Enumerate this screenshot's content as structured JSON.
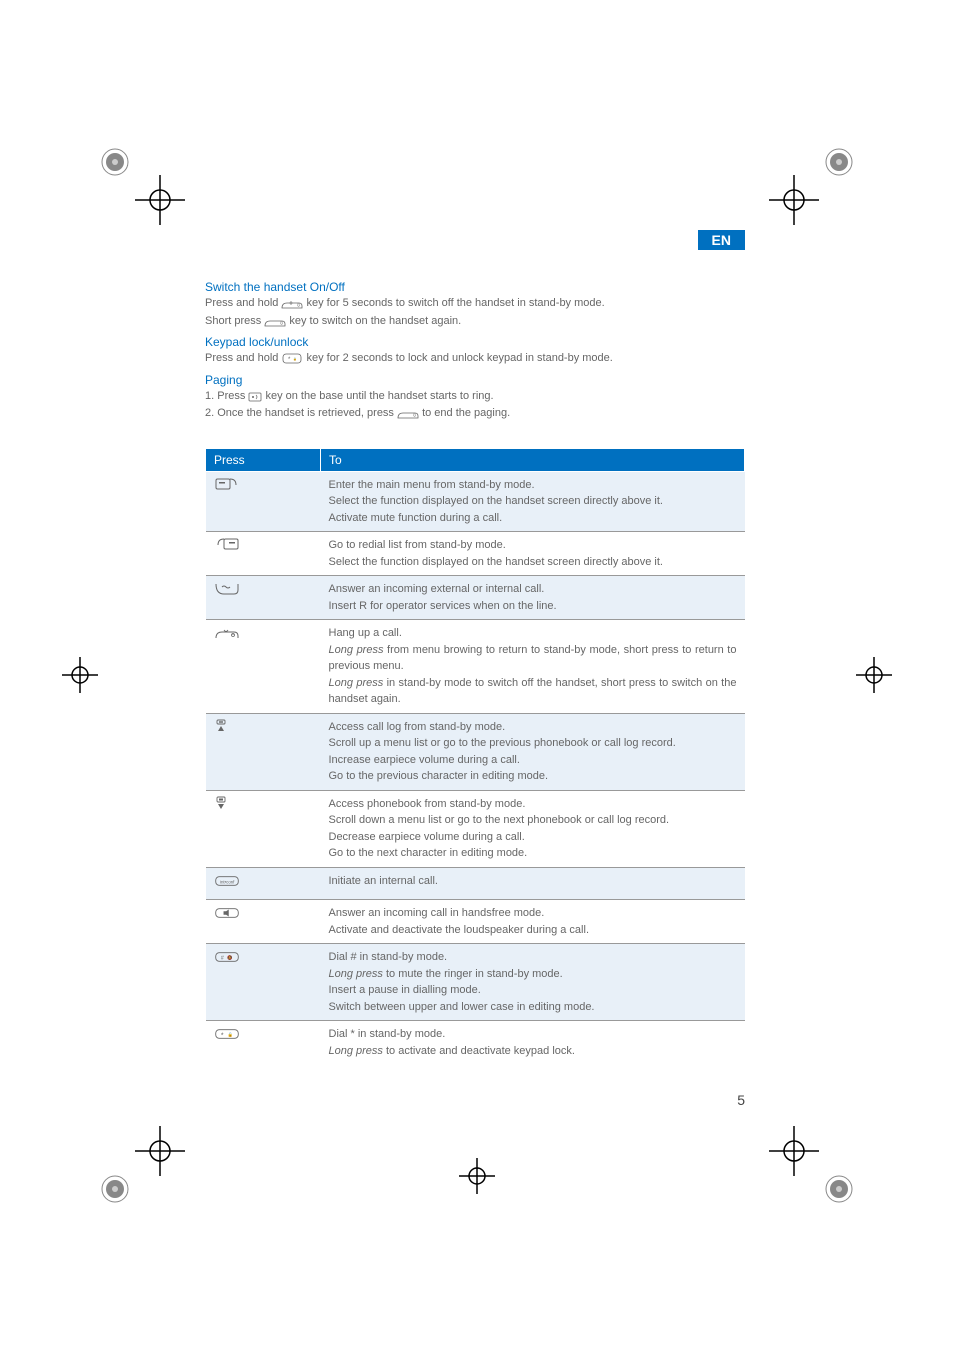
{
  "lang_badge": "EN",
  "page_number": "5",
  "sections": {
    "switch": {
      "title": "Switch the handset On/Off",
      "line1_a": "Press and hold ",
      "line1_b": " key for 5 seconds to switch off the handset in stand-by mode.",
      "line2_a": "Short press ",
      "line2_b": " key to switch on the handset again."
    },
    "keypad": {
      "title": "Keypad lock/unlock",
      "line1_a": "Press and hold ",
      "line1_b": " key for 2 seconds to lock and unlock keypad in stand-by mode."
    },
    "paging": {
      "title": "Paging",
      "line1_a": "1.  Press ",
      "line1_b": " key on the base until the handset starts to ring.",
      "line2_a": "2.  Once the handset is retrieved, press ",
      "line2_b": " to end the paging."
    }
  },
  "table": {
    "header_press": "Press",
    "header_to": "To",
    "rows": [
      {
        "icon": "left-soft",
        "lines": [
          "Enter the main menu from stand-by mode.",
          "Select the function displayed on the handset screen directly above it.",
          "Activate mute function during a call."
        ]
      },
      {
        "icon": "right-soft",
        "lines": [
          "Go to redial list from stand-by mode.",
          "Select the function displayed on the handset screen directly above it."
        ]
      },
      {
        "icon": "talk",
        "lines": [
          "Answer an incoming external or internal call.",
          "Insert R for operator services when on the line."
        ]
      },
      {
        "icon": "hangup",
        "lines_html": "Hang up a call.<br><em>Long press</em> from menu browing to return to stand-by mode, short press to return to previous menu.<br><em>Long press</em> in stand-by mode to switch off the handset, short press to switch on the handset again."
      },
      {
        "icon": "up",
        "lines": [
          "Access call log from stand-by mode.",
          "Scroll up a menu list or go to the previous phonebook or call log record.",
          "Increase earpiece volume during a call.",
          "Go to the previous character in editing mode."
        ]
      },
      {
        "icon": "down",
        "lines": [
          "Access phonebook from stand-by mode.",
          "Scroll down a menu list or go to the next phonebook or call log record.",
          "Decrease earpiece volume during a call.",
          "Go to the next character in editing mode."
        ]
      },
      {
        "icon": "int",
        "lines": [
          "Initiate an internal call."
        ]
      },
      {
        "icon": "speaker",
        "lines": [
          "Answer an incoming call in handsfree mode.",
          "Activate and deactivate the loudspeaker during a call."
        ]
      },
      {
        "icon": "hash",
        "lines_html": "Dial # in stand-by mode.<br><em>Long press</em> to mute the ringer in stand-by mode.<br>Insert a pause in dialling mode.<br>Switch between upper and lower case in editing mode."
      },
      {
        "icon": "star",
        "lines_html": "Dial * in stand-by mode.<br><em>Long press</em> to activate and deactivate keypad lock."
      }
    ]
  },
  "colors": {
    "accent": "#0070c0",
    "text": "#666666",
    "row_alt": "#e8f0f8"
  }
}
